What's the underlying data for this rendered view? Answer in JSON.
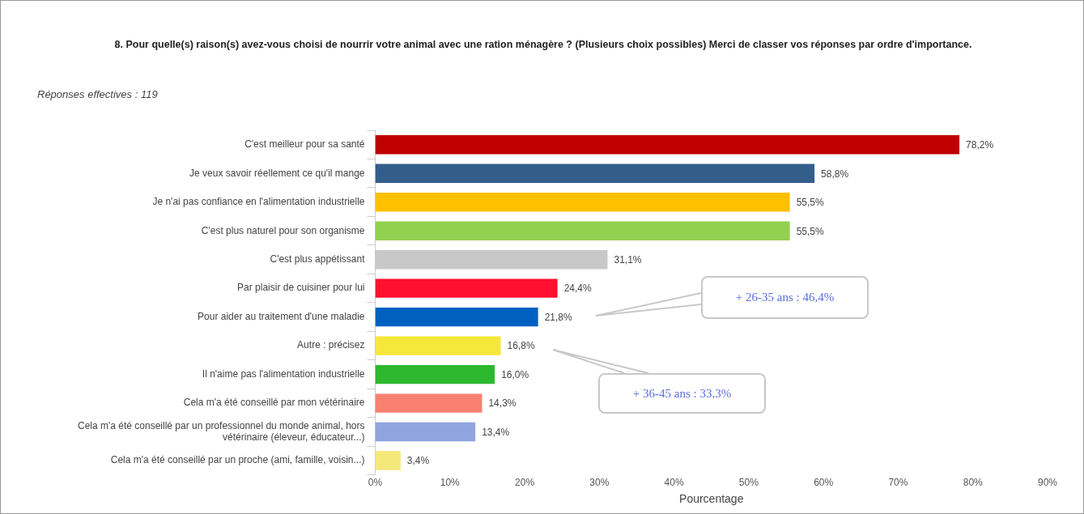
{
  "chart_data": {
    "type": "bar",
    "orientation": "horizontal",
    "title": "8. Pour quelle(s) raison(s) avez-vous choisi de nourrir votre animal avec une ration ménagère ? (Plusieurs choix possibles) Merci de classer vos réponses par ordre d'importance.",
    "subtitle": "Réponses effectives : 119",
    "xlabel": "Pourcentage",
    "categories": [
      "C'est meilleur pour sa santé",
      "Je veux savoir réellement ce qu'il mange",
      "Je n'ai pas confiance en l'alimentation industrielle",
      "C'est plus naturel pour son organisme",
      "C'est plus appétissant",
      "Par plaisir de cuisiner pour lui",
      "Pour aider au traitement d'une maladie",
      "Autre : précisez",
      "Il n'aime pas l'alimentation industrielle",
      "Cela m'a été conseillé par mon vétérinaire",
      "Cela m'a été conseillé par un professionnel du monde animal, hors vétérinaire (éleveur, éducateur...)",
      "Cela m'a été conseillé par un proche (ami, famille, voisin...)"
    ],
    "values": [
      78.2,
      58.8,
      55.5,
      55.5,
      31.1,
      24.4,
      21.8,
      16.8,
      16.0,
      14.3,
      13.4,
      3.4
    ],
    "value_labels": [
      "78,2%",
      "58,8%",
      "55,5%",
      "55,5%",
      "31,1%",
      "24,4%",
      "21,8%",
      "16,8%",
      "16,0%",
      "14,3%",
      "13,4%",
      "3,4%"
    ],
    "colors": [
      "#c00000",
      "#335e8c",
      "#ffc000",
      "#92d050",
      "#c8c8c8",
      "#ff1030",
      "#0060c0",
      "#f5e83a",
      "#2eb82e",
      "#f88070",
      "#90a4e0",
      "#f5e87a"
    ],
    "xlim": [
      0,
      90
    ],
    "xticks": [
      {
        "value": 0,
        "label": "0%"
      },
      {
        "value": 10,
        "label": "10%"
      },
      {
        "value": 20,
        "label": "20%"
      },
      {
        "value": 30,
        "label": "30%"
      },
      {
        "value": 40,
        "label": "40%"
      },
      {
        "value": 50,
        "label": "50%"
      },
      {
        "value": 60,
        "label": "60%"
      },
      {
        "value": 70,
        "label": "70%"
      },
      {
        "value": 80,
        "label": "80%"
      },
      {
        "value": 90,
        "label": "90%"
      }
    ],
    "grid": false,
    "legend": false,
    "annotations": [
      "+ 26-35 ans : 46,4%",
      "+ 36-45 ans : 33,3%"
    ]
  }
}
